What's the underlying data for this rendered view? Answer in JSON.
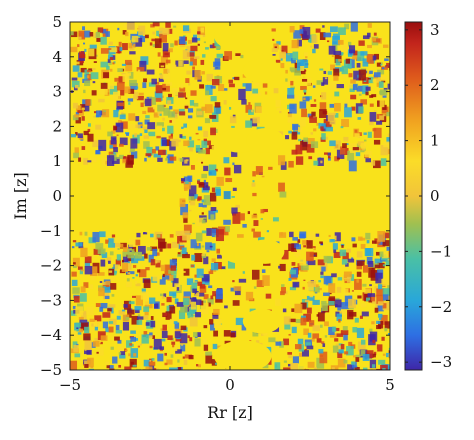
{
  "chart_data": {
    "type": "heatmap",
    "title": "",
    "xlabel": "Rr [z]",
    "ylabel": "Im [z]",
    "xlim": [
      -5,
      5
    ],
    "ylim": [
      -5,
      5
    ],
    "xticks": [
      -5,
      0,
      5
    ],
    "yticks": [
      -5,
      -4,
      -3,
      -2,
      -1,
      0,
      1,
      2,
      3,
      4,
      5
    ],
    "colorbar": {
      "range": [
        -3.1416,
        3.1416
      ],
      "ticks": [
        -3,
        -2,
        -1,
        0,
        1,
        2,
        3
      ],
      "colors": [
        "#3e26a8",
        "#2e6fe3",
        "#29a7d9",
        "#4ac0a5",
        "#a0c050",
        "#f1c43a",
        "#fbdc28",
        "#f0a020",
        "#de5a1c",
        "#c2241c",
        "#990e0e"
      ]
    },
    "background_color": "#f9e21b",
    "grid": false
  }
}
